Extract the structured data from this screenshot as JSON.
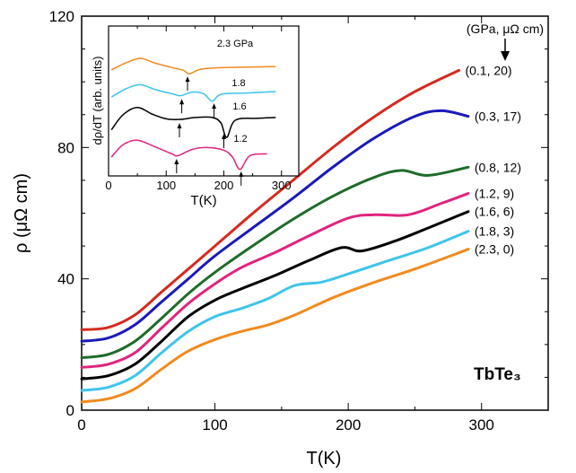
{
  "chart_data": [
    {
      "type": "line",
      "xlabel": "T(K)",
      "ylabel": "ρ (μΩ cm)",
      "xlim": [
        0,
        350
      ],
      "ylim": [
        0,
        120
      ],
      "xticks": [
        0,
        100,
        200,
        300
      ],
      "yticks": [
        0,
        40,
        80,
        120
      ],
      "header_note": "(GPa, μΩ cm)",
      "sample_label": "TbTe₃",
      "series": [
        {
          "name": "(0.1, 20)",
          "color": "#d42a1f",
          "x": [
            0,
            20,
            40,
            60,
            80,
            100,
            130,
            160,
            190,
            220,
            250,
            283
          ],
          "y": [
            24.5,
            25.2,
            29.0,
            36.0,
            43.0,
            50.0,
            60.5,
            70.5,
            80.5,
            89.5,
            97.0,
            103.5
          ]
        },
        {
          "name": "(0.3, 17)",
          "color": "#1a1ab8",
          "x": [
            0,
            20,
            40,
            60,
            80,
            100,
            130,
            160,
            190,
            220,
            250,
            270,
            290
          ],
          "y": [
            21.0,
            22.0,
            26.0,
            33.0,
            40.0,
            47.0,
            56.0,
            65.0,
            74.5,
            83.0,
            89.5,
            91.2,
            89.5
          ]
        },
        {
          "name": "(0.8, 12)",
          "color": "#1f6b2a",
          "x": [
            0,
            20,
            40,
            60,
            80,
            100,
            130,
            160,
            190,
            220,
            240,
            260,
            290
          ],
          "y": [
            16.0,
            17.0,
            21.0,
            28.0,
            35.5,
            42.0,
            50.5,
            58.5,
            65.5,
            71.0,
            73.0,
            71.5,
            74.0
          ]
        },
        {
          "name": "(1.2, 9)",
          "color": "#e0247e",
          "x": [
            0,
            20,
            40,
            60,
            80,
            100,
            120,
            145,
            170,
            200,
            220,
            245,
            270,
            290
          ],
          "y": [
            13.0,
            14.0,
            17.5,
            25.0,
            32.5,
            38.5,
            43.5,
            48.0,
            53.0,
            58.5,
            59.5,
            59.5,
            63.0,
            66.0
          ]
        },
        {
          "name": "(1.6, 6)",
          "color": "#000000",
          "x": [
            0,
            20,
            40,
            60,
            80,
            100,
            120,
            145,
            170,
            195,
            210,
            235,
            260,
            290
          ],
          "y": [
            9.5,
            10.5,
            14.0,
            21.0,
            28.5,
            33.5,
            37.0,
            41.0,
            45.5,
            49.5,
            48.5,
            51.5,
            55.5,
            60.5
          ]
        },
        {
          "name": "(1.8, 3)",
          "color": "#3ec4ea",
          "x": [
            0,
            20,
            40,
            60,
            80,
            100,
            120,
            140,
            160,
            180,
            200,
            230,
            260,
            290
          ],
          "y": [
            6.0,
            7.0,
            10.5,
            17.5,
            24.0,
            28.5,
            31.0,
            34.0,
            38.0,
            39.0,
            41.5,
            45.5,
            49.5,
            54.5
          ]
        },
        {
          "name": "(2.3, 0)",
          "color": "#f08a1e",
          "x": [
            0,
            20,
            40,
            60,
            80,
            100,
            120,
            140,
            160,
            190,
            220,
            250,
            290
          ],
          "y": [
            2.5,
            3.5,
            6.5,
            12.5,
            18.0,
            21.5,
            24.0,
            26.0,
            29.0,
            34.5,
            39.0,
            43.0,
            49.0
          ]
        }
      ]
    },
    {
      "type": "line",
      "xlabel": "T(K)",
      "ylabel": "dρ/dT (arb. units)",
      "xlim": [
        0,
        330
      ],
      "xticks": [
        0,
        100,
        200,
        300
      ],
      "series": [
        {
          "name": "2.3 GPa",
          "color": "#f08a1e",
          "offset": 3.0,
          "x": [
            5,
            30,
            55,
            80,
            110,
            130,
            140,
            160,
            200,
            240,
            290
          ],
          "y": [
            0.2,
            0.45,
            0.62,
            0.45,
            0.28,
            0.18,
            0.05,
            0.22,
            0.28,
            0.3,
            0.32
          ],
          "arrows": [
            137
          ]
        },
        {
          "name": "1.8",
          "color": "#3ec4ea",
          "offset": 2.0,
          "x": [
            5,
            30,
            55,
            80,
            110,
            125,
            145,
            165,
            180,
            195,
            240,
            290
          ],
          "y": [
            0.2,
            0.5,
            0.65,
            0.48,
            0.32,
            0.25,
            0.38,
            0.32,
            0.05,
            0.3,
            0.35,
            0.4
          ],
          "arrows": [
            127,
            183
          ]
        },
        {
          "name": "1.6",
          "color": "#000000",
          "offset": 1.0,
          "x": [
            5,
            25,
            50,
            75,
            100,
            125,
            150,
            180,
            195,
            205,
            220,
            260,
            290
          ],
          "y": [
            0.0,
            0.55,
            0.82,
            0.58,
            0.4,
            0.38,
            0.45,
            0.45,
            0.25,
            -0.28,
            0.35,
            0.42,
            0.45
          ],
          "arrows": [
            123,
            200
          ]
        },
        {
          "name": "1.2",
          "color": "#e0247e",
          "offset": 0.0,
          "x": [
            5,
            25,
            50,
            80,
            110,
            120,
            145,
            170,
            200,
            215,
            228,
            245,
            275
          ],
          "y": [
            0.0,
            0.45,
            0.62,
            0.38,
            0.12,
            0.05,
            0.28,
            0.35,
            0.25,
            0.0,
            -0.45,
            0.05,
            0.12
          ],
          "arrows": [
            118,
            230
          ]
        }
      ]
    }
  ]
}
